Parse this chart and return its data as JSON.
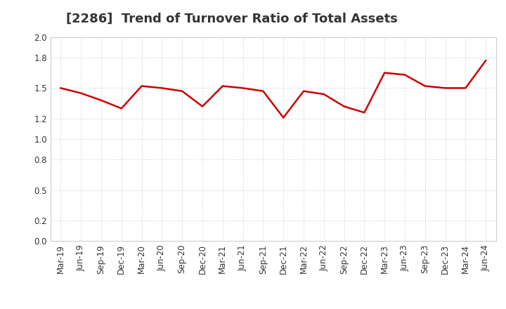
{
  "title": "[2286]  Trend of Turnover Ratio of Total Assets",
  "x_labels": [
    "Mar-19",
    "Jun-19",
    "Sep-19",
    "Dec-19",
    "Mar-20",
    "Jun-20",
    "Sep-20",
    "Dec-20",
    "Mar-21",
    "Jun-21",
    "Sep-21",
    "Dec-21",
    "Mar-22",
    "Jun-22",
    "Sep-22",
    "Dec-22",
    "Mar-23",
    "Jun-23",
    "Sep-23",
    "Dec-23",
    "Mar-24",
    "Jun-24"
  ],
  "y_values": [
    1.5,
    1.45,
    1.38,
    1.3,
    1.52,
    1.5,
    1.47,
    1.32,
    1.52,
    1.5,
    1.47,
    1.21,
    1.47,
    1.44,
    1.32,
    1.26,
    1.65,
    1.63,
    1.52,
    1.5,
    1.5,
    1.77
  ],
  "ylim": [
    0.0,
    2.0
  ],
  "yticks": [
    0.0,
    0.2,
    0.5,
    0.8,
    1.0,
    1.2,
    1.5,
    1.8,
    2.0
  ],
  "line_color": "#cc0000",
  "line_width": 1.8,
  "background_color": "#ffffff",
  "plot_bg_color": "#ffffff",
  "grid_color": "#bbbbbb",
  "title_fontsize": 13,
  "tick_fontsize": 8.5,
  "title_color": "#333333"
}
